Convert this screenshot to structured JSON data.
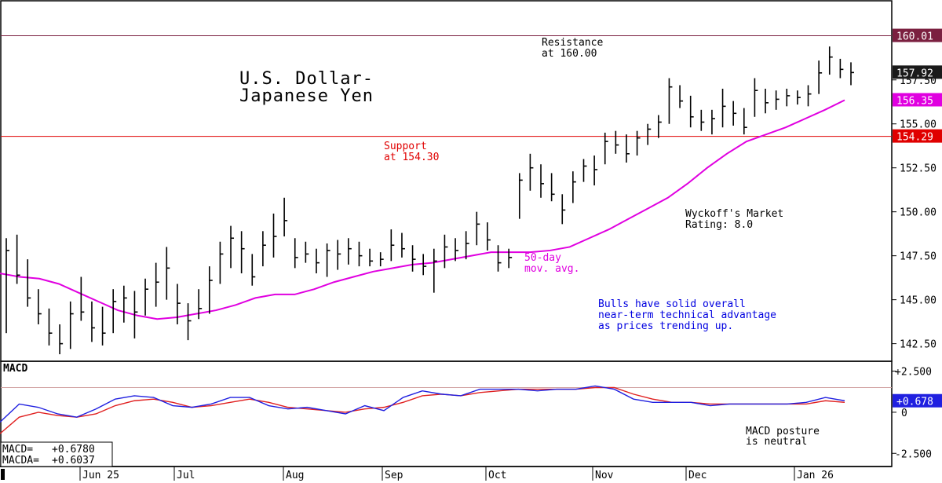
{
  "chart_data": [
    {
      "type": "bar",
      "subtype": "ohlc-price-chart",
      "title_lines": [
        "U.S. Dollar-",
        "Japanese Yen"
      ],
      "ylim": [
        141.5,
        162.0
      ],
      "y_ticks": [
        142.5,
        145.0,
        147.5,
        150.0,
        152.5,
        155.0,
        157.5
      ],
      "y_tick_labels": [
        "142.50",
        "145.00",
        "147.50",
        "150.00",
        "152.50",
        "155.00",
        "157.50"
      ],
      "x_month_labels": [
        "Jun 25",
        "Jul",
        "Aug",
        "Sep",
        "Oct",
        "Nov",
        "Dec",
        "Jan 26"
      ],
      "resistance": {
        "value": 160.01,
        "label": "160.01",
        "note_lines": [
          "Resistance",
          "at 160.00"
        ],
        "color": "#7b2040"
      },
      "support": {
        "value": 154.29,
        "label": "154.29",
        "note_lines": [
          "Support",
          "at 154.30"
        ],
        "color": "#e00000"
      },
      "last_price": {
        "value": 157.92,
        "label": "157.92"
      },
      "ma50": {
        "value": 156.35,
        "label": "156.35",
        "note_lines": [
          "50-day",
          "mov. avg."
        ],
        "color": "#e000e0",
        "values": [
          146.5,
          146.3,
          146.2,
          145.9,
          145.4,
          144.9,
          144.4,
          144.1,
          143.9,
          144.0,
          144.2,
          144.4,
          144.7,
          145.1,
          145.3,
          145.3,
          145.6,
          146.0,
          146.3,
          146.6,
          146.8,
          147.0,
          147.1,
          147.3,
          147.5,
          147.7,
          147.7,
          147.7,
          147.8,
          148.0,
          148.5,
          149.0,
          149.6,
          150.2,
          150.8,
          151.6,
          152.5,
          153.3,
          154.0,
          154.4,
          154.8,
          155.3,
          155.8,
          156.35
        ]
      },
      "bars": [
        {
          "low": 143.1,
          "high": 148.5,
          "close": 147.8
        },
        {
          "low": 145.9,
          "high": 148.7,
          "close": 146.4
        },
        {
          "low": 144.6,
          "high": 147.3,
          "close": 145.1
        },
        {
          "low": 143.6,
          "high": 145.6,
          "close": 144.2
        },
        {
          "low": 142.4,
          "high": 144.5,
          "close": 143.1
        },
        {
          "low": 141.9,
          "high": 143.6,
          "close": 142.5
        },
        {
          "low": 142.2,
          "high": 144.9,
          "close": 144.2
        },
        {
          "low": 143.8,
          "high": 146.3,
          "close": 144.3
        },
        {
          "low": 142.6,
          "high": 144.9,
          "close": 143.4
        },
        {
          "low": 142.4,
          "high": 144.6,
          "close": 143.1
        },
        {
          "low": 143.1,
          "high": 145.6,
          "close": 144.9
        },
        {
          "low": 143.7,
          "high": 145.8,
          "close": 145.1
        },
        {
          "low": 142.8,
          "high": 145.5,
          "close": 144.3
        },
        {
          "low": 144.1,
          "high": 146.2,
          "close": 145.6
        },
        {
          "low": 144.6,
          "high": 147.1,
          "close": 146.0
        },
        {
          "low": 145.0,
          "high": 148.0,
          "close": 146.8
        },
        {
          "low": 143.6,
          "high": 145.9,
          "close": 144.8
        },
        {
          "low": 142.7,
          "high": 144.8,
          "close": 143.8
        },
        {
          "low": 143.9,
          "high": 145.6,
          "close": 144.5
        },
        {
          "low": 144.2,
          "high": 146.9,
          "close": 146.1
        },
        {
          "low": 145.9,
          "high": 148.3,
          "close": 147.6
        },
        {
          "low": 146.8,
          "high": 149.2,
          "close": 148.5
        },
        {
          "low": 146.5,
          "high": 148.9,
          "close": 147.9
        },
        {
          "low": 145.8,
          "high": 147.6,
          "close": 146.3
        },
        {
          "low": 146.9,
          "high": 148.9,
          "close": 148.1
        },
        {
          "low": 147.4,
          "high": 149.9,
          "close": 148.6
        },
        {
          "low": 148.6,
          "high": 150.8,
          "close": 149.5
        },
        {
          "low": 146.8,
          "high": 148.5,
          "close": 147.4
        },
        {
          "low": 147.1,
          "high": 148.3,
          "close": 147.6
        },
        {
          "low": 146.5,
          "high": 147.9,
          "close": 147.1
        },
        {
          "low": 146.3,
          "high": 148.2,
          "close": 147.8
        },
        {
          "low": 146.7,
          "high": 148.4,
          "close": 147.6
        },
        {
          "low": 147.0,
          "high": 148.5,
          "close": 147.9
        },
        {
          "low": 146.9,
          "high": 148.3,
          "close": 147.5
        },
        {
          "low": 146.9,
          "high": 147.9,
          "close": 147.2
        },
        {
          "low": 146.9,
          "high": 147.7,
          "close": 147.3
        },
        {
          "low": 147.2,
          "high": 149.0,
          "close": 148.1
        },
        {
          "low": 147.4,
          "high": 148.8,
          "close": 147.9
        },
        {
          "low": 146.6,
          "high": 148.1,
          "close": 147.3
        },
        {
          "low": 146.4,
          "high": 147.6,
          "close": 146.9
        },
        {
          "low": 145.4,
          "high": 147.9,
          "close": 147.2
        },
        {
          "low": 146.8,
          "high": 148.7,
          "close": 148.0
        },
        {
          "low": 147.2,
          "high": 148.5,
          "close": 147.8
        },
        {
          "low": 147.3,
          "high": 148.9,
          "close": 148.2
        },
        {
          "low": 148.1,
          "high": 150.0,
          "close": 149.3
        },
        {
          "low": 147.8,
          "high": 149.4,
          "close": 148.4
        },
        {
          "low": 146.6,
          "high": 148.1,
          "close": 147.1
        },
        {
          "low": 146.8,
          "high": 147.9,
          "close": 147.4
        },
        {
          "low": 149.6,
          "high": 152.2,
          "close": 151.8
        },
        {
          "low": 151.2,
          "high": 153.3,
          "close": 152.5
        },
        {
          "low": 150.8,
          "high": 152.7,
          "close": 151.6
        },
        {
          "low": 150.6,
          "high": 152.2,
          "close": 151.0
        },
        {
          "low": 149.3,
          "high": 151.0,
          "close": 150.1
        },
        {
          "low": 150.5,
          "high": 152.3,
          "close": 151.7
        },
        {
          "low": 151.7,
          "high": 153.0,
          "close": 152.6
        },
        {
          "low": 151.5,
          "high": 153.2,
          "close": 152.4
        },
        {
          "low": 152.7,
          "high": 154.5,
          "close": 154.0
        },
        {
          "low": 153.3,
          "high": 154.6,
          "close": 153.8
        },
        {
          "low": 152.8,
          "high": 154.4,
          "close": 153.3
        },
        {
          "low": 153.2,
          "high": 154.6,
          "close": 154.2
        },
        {
          "low": 153.8,
          "high": 155.0,
          "close": 154.7
        },
        {
          "low": 154.2,
          "high": 155.5,
          "close": 155.1
        },
        {
          "low": 155.0,
          "high": 157.6,
          "close": 157.1
        },
        {
          "low": 155.9,
          "high": 157.2,
          "close": 156.3
        },
        {
          "low": 154.8,
          "high": 156.6,
          "close": 155.4
        },
        {
          "low": 154.6,
          "high": 155.8,
          "close": 155.1
        },
        {
          "low": 154.4,
          "high": 155.8,
          "close": 155.3
        },
        {
          "low": 154.8,
          "high": 157.0,
          "close": 156.0
        },
        {
          "low": 154.9,
          "high": 156.3,
          "close": 155.6
        },
        {
          "low": 154.4,
          "high": 155.9,
          "close": 154.8
        },
        {
          "low": 155.4,
          "high": 157.6,
          "close": 156.9
        },
        {
          "low": 155.6,
          "high": 157.0,
          "close": 156.2
        },
        {
          "low": 155.8,
          "high": 156.9,
          "close": 156.4
        },
        {
          "low": 156.0,
          "high": 157.0,
          "close": 156.6
        },
        {
          "low": 156.1,
          "high": 156.9,
          "close": 156.5
        },
        {
          "low": 156.0,
          "high": 157.2,
          "close": 156.7
        },
        {
          "low": 156.7,
          "high": 158.6,
          "close": 157.9
        },
        {
          "low": 157.8,
          "high": 159.4,
          "close": 158.8
        },
        {
          "low": 157.6,
          "high": 158.7,
          "close": 158.1
        },
        {
          "low": 157.2,
          "high": 158.5,
          "close": 157.92
        }
      ],
      "notes": [
        {
          "lines": [
            "Wyckoff's Market",
            "Rating: 8.0"
          ],
          "color": "#000000"
        },
        {
          "lines": [
            "Bulls have solid overall",
            "near-term technical advantage",
            "as prices trending up."
          ],
          "color": "#0000e0"
        }
      ]
    },
    {
      "type": "line",
      "subtype": "macd",
      "panel_label": "MACD",
      "ylim": [
        -3.3,
        3.1
      ],
      "y_ticks": [
        2.5,
        0,
        -2.5
      ],
      "y_tick_labels": [
        "+2.500",
        "0",
        "-2.500"
      ],
      "reference_line": 1.5,
      "readout": [
        {
          "label": "MACD=",
          "value": "+0.6780"
        },
        {
          "label": "MACDA=",
          "value": "+0.6037"
        }
      ],
      "current": {
        "value": 0.678,
        "label": "+0.678"
      },
      "note_lines": [
        "MACD posture",
        "is neutral"
      ],
      "series": [
        {
          "name": "MACD",
          "color": "#2020e0",
          "values": [
            -0.6,
            0.5,
            0.3,
            -0.1,
            -0.3,
            0.2,
            0.8,
            1.0,
            0.9,
            0.4,
            0.3,
            0.5,
            0.9,
            0.9,
            0.4,
            0.2,
            0.3,
            0.1,
            -0.1,
            0.4,
            0.1,
            0.9,
            1.3,
            1.1,
            1.0,
            1.4,
            1.4,
            1.4,
            1.3,
            1.4,
            1.4,
            1.6,
            1.4,
            0.8,
            0.6,
            0.6,
            0.6,
            0.4,
            0.5,
            0.5,
            0.5,
            0.5,
            0.6,
            0.9,
            0.7
          ]
        },
        {
          "name": "MACDA",
          "color": "#e02020",
          "values": [
            -1.3,
            -0.3,
            0.0,
            -0.2,
            -0.3,
            -0.1,
            0.4,
            0.7,
            0.8,
            0.6,
            0.3,
            0.4,
            0.6,
            0.8,
            0.6,
            0.3,
            0.2,
            0.1,
            0.0,
            0.2,
            0.3,
            0.6,
            1.0,
            1.1,
            1.0,
            1.2,
            1.3,
            1.4,
            1.4,
            1.4,
            1.4,
            1.5,
            1.5,
            1.1,
            0.8,
            0.6,
            0.6,
            0.5,
            0.5,
            0.5,
            0.5,
            0.5,
            0.5,
            0.7,
            0.6
          ]
        }
      ]
    }
  ]
}
